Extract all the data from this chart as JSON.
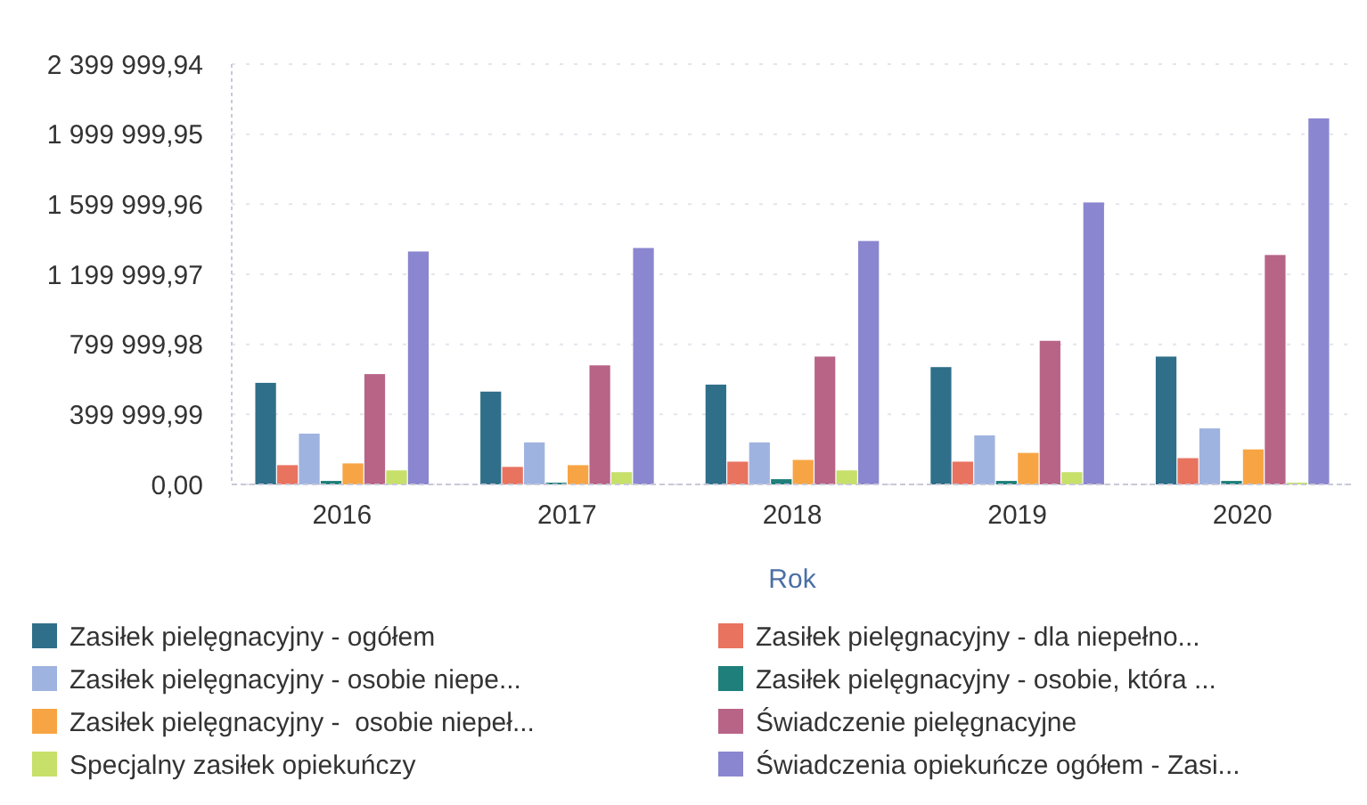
{
  "chart_data": {
    "type": "bar",
    "xlabel": "Rok",
    "categories": [
      "2016",
      "2017",
      "2018",
      "2019",
      "2020"
    ],
    "series": [
      {
        "name": "Zasiłek pielęgnacyjny - ogółem",
        "color": "#2f6f8a",
        "values": [
          580000,
          530000,
          570000,
          670000,
          730000
        ]
      },
      {
        "name": "Zasiłek pielęgnacyjny - dla niepełno...",
        "color": "#e8735f",
        "values": [
          110000,
          100000,
          130000,
          130000,
          150000
        ]
      },
      {
        "name": "Zasiłek pielęgnacyjny - osobie niepe...",
        "color": "#9fb3e0",
        "values": [
          290000,
          240000,
          240000,
          280000,
          320000
        ]
      },
      {
        "name": "Zasiłek pielęgnacyjny - osobie, która ...",
        "color": "#1f7f7a",
        "values": [
          20000,
          10000,
          30000,
          20000,
          20000
        ]
      },
      {
        "name": "Zasiłek pielęgnacyjny -  osobie niepeł...",
        "color": "#f7a544",
        "values": [
          120000,
          110000,
          140000,
          180000,
          200000
        ]
      },
      {
        "name": "Świadczenie pielęgnacyjne",
        "color": "#b86487",
        "values": [
          630000,
          680000,
          730000,
          820000,
          1310000
        ]
      },
      {
        "name": "Specjalny zasiłek opiekuńczy",
        "color": "#c6e06a",
        "values": [
          80000,
          70000,
          80000,
          70000,
          10000
        ]
      },
      {
        "name": "Świadczenia opiekuńcze ogółem - Zasi...",
        "color": "#8a86cf",
        "values": [
          1330000,
          1350000,
          1390000,
          1610000,
          2090000
        ]
      }
    ],
    "ylim": [
      0,
      2399999.94
    ],
    "yticks": [
      {
        "value": 0,
        "label": "0,00"
      },
      {
        "value": 399999.99,
        "label": "399 999,99"
      },
      {
        "value": 799999.98,
        "label": "799 999,98"
      },
      {
        "value": 1199999.97,
        "label": "1 199 999,97"
      },
      {
        "value": 1599999.96,
        "label": "1 599 999,96"
      },
      {
        "value": 1999999.95,
        "label": "1 999 999,95"
      },
      {
        "value": 2399999.94,
        "label": "2 399 999,94"
      }
    ],
    "grid": "y",
    "legend": "bottom"
  }
}
